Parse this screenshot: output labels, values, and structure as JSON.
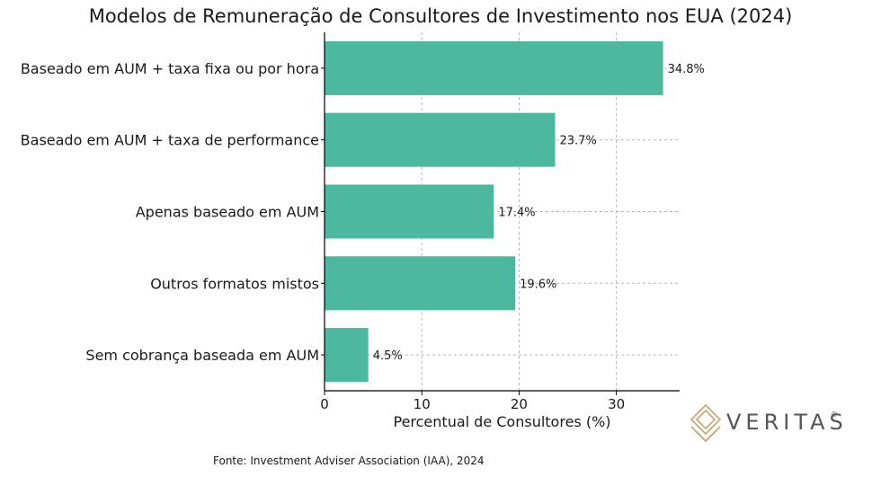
{
  "chart_data": {
    "type": "bar",
    "orientation": "horizontal",
    "title": "Modelos de Remuneração de Consultores de Investimento nos EUA (2024)",
    "categories": [
      "Baseado em AUM + taxa fixa ou por hora",
      "Baseado em AUM + taxa de performance",
      "Apenas baseado em AUM",
      "Outros formatos mistos",
      "Sem cobrança baseada em AUM"
    ],
    "values": [
      34.8,
      23.7,
      17.4,
      19.6,
      4.5
    ],
    "value_labels": [
      "34.8%",
      "23.7%",
      "17.4%",
      "19.6%",
      "4.5%"
    ],
    "xlabel": "Percentual de Consultores (%)",
    "ylabel": "",
    "xlim": [
      0,
      36.5
    ],
    "xticks": [
      0,
      10,
      20,
      30
    ],
    "grid": true,
    "bar_color": "#4db89e"
  },
  "source": "Fonte: Investment Adviser Association (IAA), 2024",
  "logo": {
    "text": "VERITAS",
    "reg": "®",
    "color": "#c9a46c"
  }
}
